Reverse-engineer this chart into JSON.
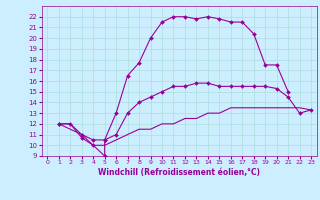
{
  "title": "",
  "xlabel": "Windchill (Refroidissement éolien,°C)",
  "bg_color": "#cceeff",
  "line_color": "#990099",
  "grid_color": "#aadddd",
  "xlim": [
    -0.5,
    23.5
  ],
  "ylim": [
    9,
    23
  ],
  "xticks": [
    0,
    1,
    2,
    3,
    4,
    5,
    6,
    7,
    8,
    9,
    10,
    11,
    12,
    13,
    14,
    15,
    16,
    17,
    18,
    19,
    20,
    21,
    22,
    23
  ],
  "yticks": [
    9,
    10,
    11,
    12,
    13,
    14,
    15,
    16,
    17,
    18,
    19,
    20,
    21,
    22
  ],
  "line1_x": [
    1,
    2,
    3,
    4,
    5,
    5,
    6,
    7,
    8,
    9,
    10,
    11,
    12,
    13,
    14,
    15,
    16,
    17,
    18,
    19,
    20,
    21
  ],
  "line1_y": [
    12,
    12,
    10.7,
    10,
    9,
    10.5,
    13,
    16.5,
    17.7,
    20,
    21.5,
    22,
    22,
    21.8,
    22,
    21.8,
    21.5,
    21.5,
    20.4,
    17.5,
    17.5,
    15
  ],
  "line2_x": [
    1,
    3,
    4,
    5,
    6,
    7,
    8,
    9,
    10,
    11,
    12,
    13,
    14,
    15,
    16,
    17,
    18,
    19,
    20,
    21,
    22,
    23
  ],
  "line2_y": [
    12,
    11,
    10.5,
    10.5,
    11,
    13,
    14,
    14.5,
    15,
    15.5,
    15.5,
    15.8,
    15.8,
    15.5,
    15.5,
    15.5,
    15.5,
    15.5,
    15.3,
    14.5,
    13,
    13.3
  ],
  "line3_x": [
    1,
    2,
    3,
    4,
    5,
    6,
    7,
    8,
    9,
    10,
    11,
    12,
    13,
    14,
    15,
    16,
    17,
    18,
    19,
    20,
    21,
    22,
    23
  ],
  "line3_y": [
    12,
    12,
    11,
    10,
    10,
    10.5,
    11,
    11.5,
    11.5,
    12,
    12,
    12.5,
    12.5,
    13,
    13,
    13.5,
    13.5,
    13.5,
    13.5,
    13.5,
    13.5,
    13.5,
    13.3
  ]
}
